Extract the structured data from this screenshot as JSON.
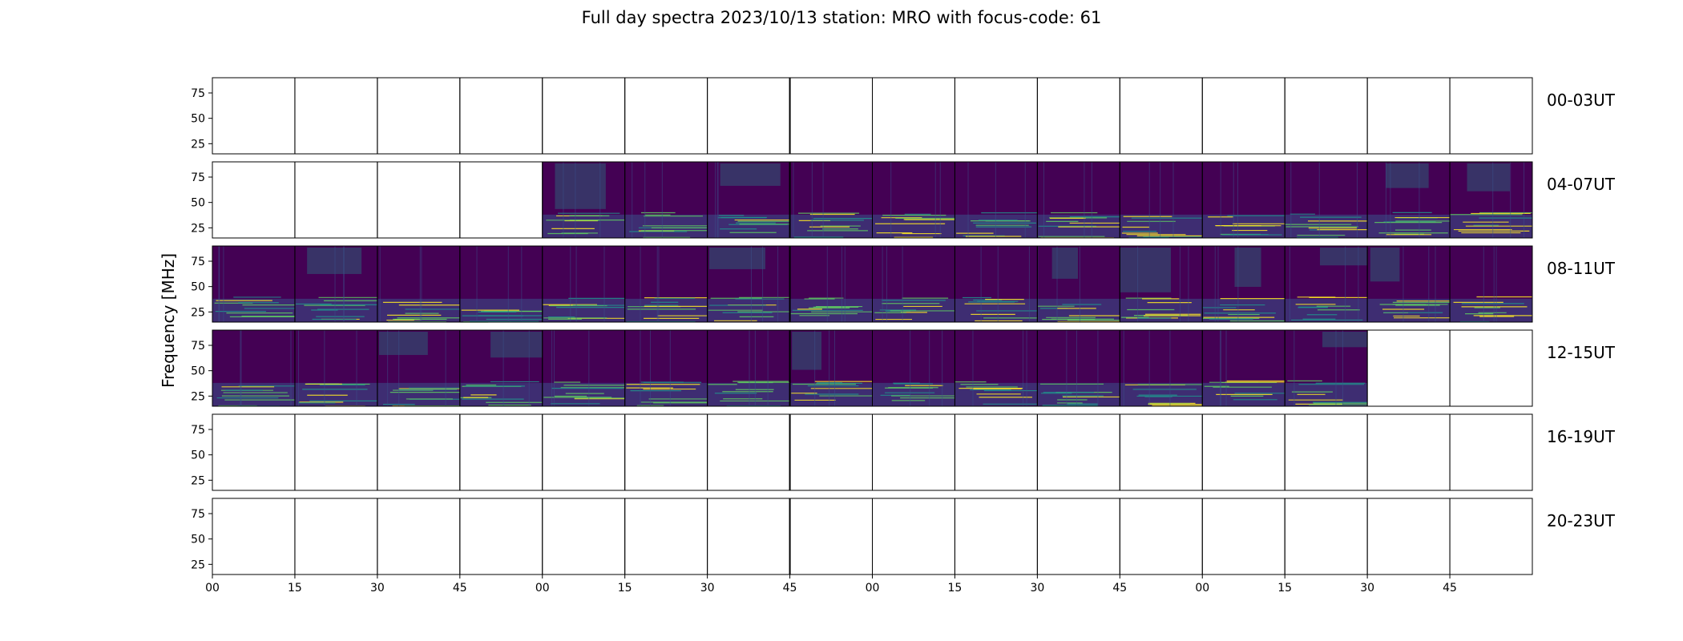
{
  "chart_data": {
    "type": "heatmap",
    "title": "Full day spectra 2023/10/13 station: MRO with focus-code: 61",
    "ylabel": "Frequency [MHz]",
    "yticks": [
      25,
      50,
      75
    ],
    "ylim": [
      15,
      90
    ],
    "xticks": [
      "00",
      "15",
      "30",
      "45",
      "00",
      "15",
      "30",
      "45",
      "00",
      "15",
      "30",
      "45",
      "00",
      "15",
      "30",
      "45"
    ],
    "colormap": [
      "#440154",
      "#3b528b",
      "#21918c",
      "#5ec962",
      "#fde725"
    ],
    "rows": [
      {
        "label": "00-03UT",
        "cells": "0000000000000000"
      },
      {
        "label": "04-07UT",
        "cells": "0000111111111111"
      },
      {
        "label": "08-11UT",
        "cells": "1111111111111111"
      },
      {
        "label": "12-15UT",
        "cells": "1111111111111100"
      },
      {
        "label": "16-19UT",
        "cells": "0000000000000000"
      },
      {
        "label": "20-23UT",
        "cells": "0000000000000000"
      }
    ]
  }
}
